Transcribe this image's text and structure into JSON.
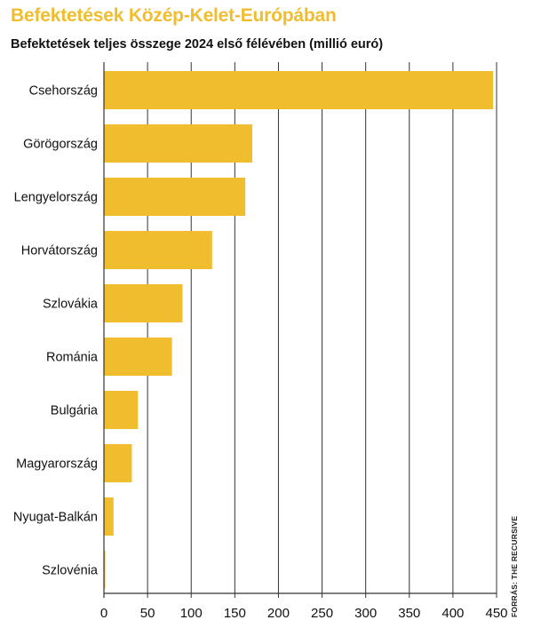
{
  "header": {
    "title": "Befektetések Közép-Kelet-Európában",
    "subtitle": "Befektetések teljes összege 2024 első félévében (millió euró)",
    "source": "FORRÁS: THE RECURSIVE"
  },
  "colors": {
    "accent": "#f0bd2f",
    "bar": "#f0bd2f",
    "grid": "#333333",
    "text": "#111111"
  },
  "chart_data": {
    "type": "bar",
    "orientation": "horizontal",
    "title": "Befektetések Közép-Kelet-Európában",
    "subtitle": "Befektetések teljes összege 2024 első félévében (millió euró)",
    "categories": [
      "Csehország",
      "Görögország",
      "Lengyelország",
      "Horvátország",
      "Szlovákia",
      "Románia",
      "Bulgária",
      "Magyarország",
      "Nyugat-Balkán",
      "Szlovénia"
    ],
    "values": [
      446,
      170,
      162,
      124,
      90,
      78,
      39,
      32,
      11,
      1
    ],
    "xlim": [
      0,
      450
    ],
    "xticks": [
      "0",
      "50",
      "100",
      "150",
      "200",
      "250",
      "300",
      "350",
      "400",
      "450"
    ],
    "xtick_values": [
      0,
      50,
      100,
      150,
      200,
      250,
      300,
      350,
      400,
      450
    ],
    "grid": true,
    "legend": "none"
  }
}
